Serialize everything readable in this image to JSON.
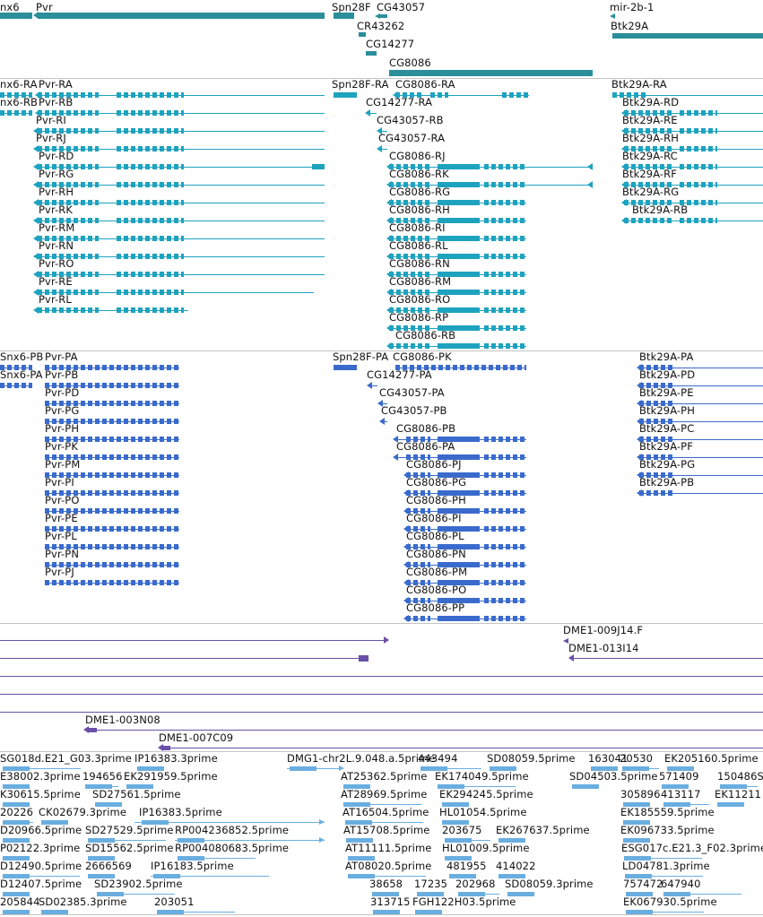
{
  "genes_track": {
    "labels": [
      "nx6",
      "Pvr",
      "Spn28F",
      "CG43057",
      "CR43262",
      "CG14277",
      "CG8086",
      "mir-2b-1",
      "Btk29A"
    ]
  },
  "rna_track": {
    "labels": [
      "nx6-RA",
      "Pvr-RA",
      "nx6-RB",
      "Pvr-RB",
      "Pvr-RI",
      "Pvr-RJ",
      "Pvr-RD",
      "Pvr-RG",
      "Pvr-RH",
      "Pvr-RK",
      "Pvr-RM",
      "Pvr-RN",
      "Pvr-RO",
      "Pvr-RE",
      "Pvr-RL",
      "Spn28F-RA",
      "CG8086-RA",
      "CG14277-RA",
      "CG43057-RB",
      "CG43057-RA",
      "CG8086-RJ",
      "CG8086-RK",
      "CG8086-RG",
      "CG8086-RH",
      "CG8086-RI",
      "CG8086-RL",
      "CG8086-RN",
      "CG8086-RM",
      "CG8086-RO",
      "CG8086-RP",
      "CG8086-RB",
      "Btk29A-RA",
      "Btk29A-RD",
      "Btk29A-RE",
      "Btk29A-RH",
      "Btk29A-RC",
      "Btk29A-RF",
      "Btk29A-RG",
      "Btk29A-RB"
    ]
  },
  "protein_track": {
    "labels": [
      "Snx6-PB",
      "Pvr-PA",
      "Snx6-PA",
      "Pvr-PB",
      "Pvr-PD",
      "Pvr-PG",
      "Pvr-PH",
      "Pvr-PK",
      "Pvr-PM",
      "Pvr-PI",
      "Pvr-PO",
      "Pvr-PE",
      "Pvr-PL",
      "Pvr-PN",
      "Pvr-PJ",
      "Spn28F-PA",
      "CG8086-PK",
      "CG14277-PA",
      "CG43057-PA",
      "CG43057-PB",
      "CG8086-PB",
      "CG8086-PA",
      "CG8086-PJ",
      "CG8086-PG",
      "CG8086-PH",
      "CG8086-PI",
      "CG8086-PL",
      "CG8086-PN",
      "CG8086-PM",
      "CG8086-PO",
      "CG8086-PP",
      "Btk29A-PA",
      "Btk29A-PD",
      "Btk29A-PE",
      "Btk29A-PH",
      "Btk29A-PC",
      "Btk29A-PF",
      "Btk29A-PG",
      "Btk29A-PB"
    ]
  },
  "clone_track": {
    "labels": [
      "DME1-009J14.F",
      "DME1-013I14",
      "DME1-003N08",
      "DME1-007C09"
    ]
  },
  "est_track": {
    "labels": [
      "SG018d.E21_G03.3prime",
      "IP16383.3prime",
      "DMG1-chr2L.9.048.a.5prime",
      "443494",
      "SD08059.5prime",
      "163041",
      "20530",
      "EK205160.5prime",
      "E38002.3prime",
      "194656",
      "EK291959.5prime",
      "AT25362.5prime",
      "EK174049.5prime",
      "SD04503.5prime",
      "571409",
      "150486S",
      "K30615.5prime",
      "SD27561.5prime",
      "AT28969.5prime",
      "EK294245.5prime",
      "305896",
      "413117",
      "EK11211",
      "20226",
      "CK02679.3prime",
      "IP16383.5prime",
      "AT16504.5prime",
      "HL01054.5prime",
      "EK185559.5prime",
      "D20966.5prime",
      "SD27529.5prime",
      "RP004236852.5prime",
      "AT15708.5prime",
      "203675",
      "EK267637.5prime",
      "EK096733.5prime",
      "P02122.3prime",
      "SD15562.5prime",
      "RP004080683.5prime",
      "AT11111.5prime",
      "HL01009.5prime",
      "ESG017c.E21.3_F02.3prime",
      "D12490.5prime",
      "2666569",
      "IP16183.5prime",
      "AT08020.5prime",
      "481955",
      "414022",
      "LD04781.3prime",
      "D12407.5prime",
      "SD23902.5prime",
      "38658",
      "17235",
      "202968",
      "SD08059.3prime",
      "757472",
      "647940",
      "205844",
      "SD02385.3prime",
      "203051",
      "313715",
      "FGH122H03.5prime",
      "EK067930.5prime"
    ]
  },
  "colors": {
    "gene": "#2a8f9a",
    "rna": "#1ea3bf",
    "protein": "#3a6bcc",
    "clone": "#6a4fa8",
    "est": "#6aaee0",
    "separator": "#c4c4c4"
  }
}
